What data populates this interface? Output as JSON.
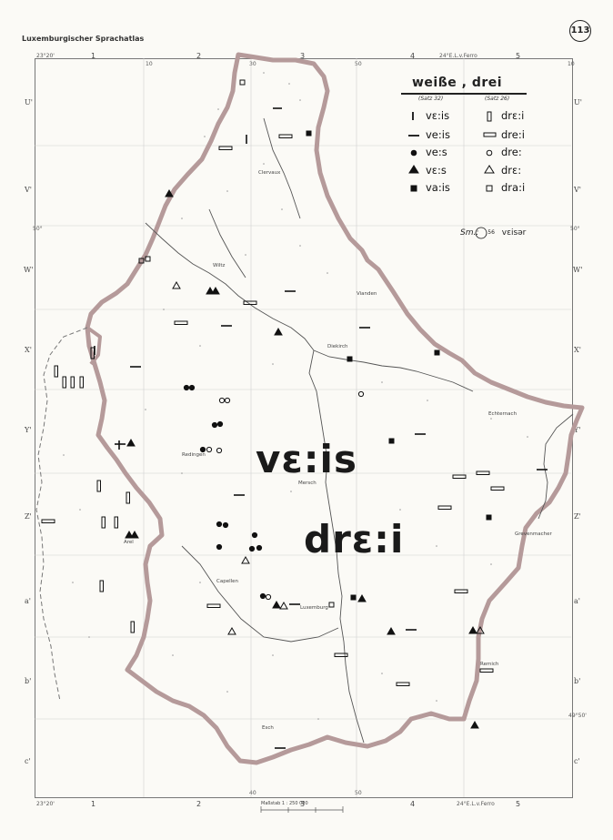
{
  "header": {
    "atlas_title": "Luxemburgischer Sprachatlas",
    "plate_number": "113"
  },
  "grid": {
    "columns": [
      "1",
      "2",
      "3",
      "4",
      "5"
    ],
    "rows_left": [
      "U'",
      "V'",
      "W'",
      "X'",
      "Y'",
      "Z'",
      "a'",
      "b'",
      "c'"
    ],
    "top_left_coord": "23°20'",
    "top_right_coord": "24°E.L.v.Ferro",
    "bottom_left_coord": "23°20'",
    "bottom_right_coord": "24°E.L.v.Ferro",
    "minutes": [
      "10",
      "30",
      "40",
      "50",
      "10"
    ],
    "lat_marks": [
      "50°",
      "50°",
      "49°50'"
    ]
  },
  "legend": {
    "title": "weiße , drei",
    "sub_left": "(Satz 32)",
    "sub_right": "(Satz 26)",
    "left_entries": [
      {
        "symbol": "vertical-bar",
        "label": "vɛ:is"
      },
      {
        "symbol": "horizontal-bar",
        "label": "ve:is"
      },
      {
        "symbol": "filled-circle",
        "label": "ve:s"
      },
      {
        "symbol": "filled-triangle",
        "label": "vɛ:s"
      },
      {
        "symbol": "filled-square",
        "label": "va:is"
      }
    ],
    "right_entries": [
      {
        "symbol": "double-vertical-bar",
        "label": "drɛ:i"
      },
      {
        "symbol": "double-horizontal-bar",
        "label": "dre:i"
      },
      {
        "symbol": "open-circle",
        "label": "dre:"
      },
      {
        "symbol": "open-triangle",
        "label": "drɛ:"
      },
      {
        "symbol": "open-square",
        "label": "dra:i"
      }
    ],
    "note_prefix": "Sm.:",
    "note_circle": "56",
    "note_form": "vɛisər"
  },
  "overlay": {
    "form_weisse": "vɛ:is",
    "form_drei": "drɛ:i"
  },
  "places": [
    "Wiltz",
    "Clervaux",
    "Vianden",
    "Diekirch",
    "Echternach",
    "Redingen",
    "Mersch",
    "Arel",
    "Capellen",
    "Grevenmacher",
    "Luxemburg",
    "Remich",
    "Esch"
  ],
  "scale": "Maßstab 1 : 250 000",
  "colors": {
    "border": "#b59a9a",
    "ink": "#1a1a1a",
    "paper": "#fbfaf6"
  }
}
